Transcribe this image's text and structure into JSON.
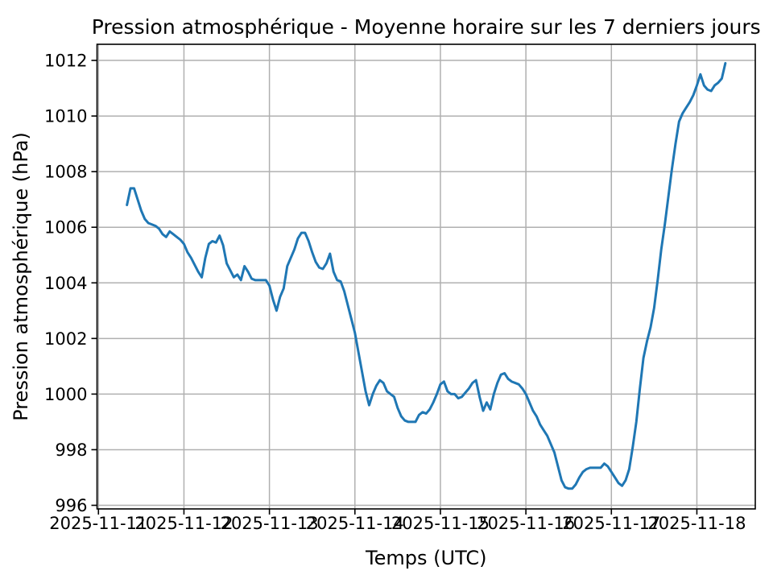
{
  "chart_data": {
    "type": "line",
    "title": "Pression atmosphérique - Moyenne horaire sur les 7 derniers jours",
    "xlabel": "Temps (UTC)",
    "ylabel": "Pression atmosphérique (hPa)",
    "grid": true,
    "legend": false,
    "line_color": "#1f77b4",
    "grid_color": "#b0b0b0",
    "spine_color": "#000000",
    "x_tick_labels": [
      "2025-11-11",
      "2025-11-12",
      "2025-11-13",
      "2025-11-14",
      "2025-11-15",
      "2025-11-16",
      "2025-11-17",
      "2025-11-18"
    ],
    "x_tick_hours": [
      0,
      24,
      48,
      72,
      96,
      120,
      144,
      168
    ],
    "x_unit": "hours since 2025-11-11 00:00 UTC",
    "x_start_hour": 8,
    "x_step_hours": 1,
    "xlim_hours": [
      -0.4,
      184.4
    ],
    "y_ticks": [
      996,
      998,
      1000,
      1002,
      1004,
      1006,
      1008,
      1010,
      1012
    ],
    "ylim": [
      995.87,
      1012.58
    ],
    "series": [
      {
        "name": "Pression atmosphérique",
        "y_values_hpa": [
          1006.8,
          1007.4,
          1007.4,
          1007.0,
          1006.6,
          1006.3,
          1006.15,
          1006.1,
          1006.05,
          1005.95,
          1005.75,
          1005.65,
          1005.85,
          1005.75,
          1005.65,
          1005.55,
          1005.4,
          1005.1,
          1004.9,
          1004.65,
          1004.4,
          1004.2,
          1004.9,
          1005.4,
          1005.5,
          1005.45,
          1005.7,
          1005.35,
          1004.7,
          1004.45,
          1004.2,
          1004.3,
          1004.1,
          1004.6,
          1004.4,
          1004.15,
          1004.1,
          1004.1,
          1004.1,
          1004.1,
          1003.9,
          1003.4,
          1003.0,
          1003.5,
          1003.8,
          1004.6,
          1004.9,
          1005.2,
          1005.6,
          1005.8,
          1005.8,
          1005.5,
          1005.1,
          1004.75,
          1004.55,
          1004.5,
          1004.7,
          1005.05,
          1004.4,
          1004.1,
          1004.05,
          1003.7,
          1003.2,
          1002.7,
          1002.2,
          1001.5,
          1000.8,
          1000.1,
          999.6,
          1000.0,
          1000.3,
          1000.5,
          1000.4,
          1000.1,
          1000.0,
          999.9,
          999.5,
          999.2,
          999.05,
          999.0,
          999.0,
          999.0,
          999.25,
          999.35,
          999.3,
          999.45,
          999.7,
          1000.0,
          1000.35,
          1000.45,
          1000.1,
          1000.0,
          1000.0,
          999.85,
          999.9,
          1000.05,
          1000.2,
          1000.4,
          1000.5,
          999.9,
          999.4,
          999.7,
          999.45,
          1000.0,
          1000.4,
          1000.7,
          1000.75,
          1000.55,
          1000.45,
          1000.4,
          1000.35,
          1000.2,
          1000.0,
          999.7,
          999.4,
          999.2,
          998.9,
          998.7,
          998.5,
          998.2,
          997.9,
          997.4,
          996.9,
          996.65,
          996.6,
          996.6,
          996.75,
          997.0,
          997.2,
          997.3,
          997.35,
          997.35,
          997.35,
          997.35,
          997.5,
          997.4,
          997.2,
          997.0,
          996.8,
          996.7,
          996.9,
          997.3,
          998.1,
          999.0,
          1000.2,
          1001.3,
          1001.9,
          1002.4,
          1003.1,
          1004.1,
          1005.2,
          1006.1,
          1007.1,
          1008.1,
          1009.0,
          1009.8,
          1010.1,
          1010.3,
          1010.5,
          1010.75,
          1011.1,
          1011.5,
          1011.1,
          1010.95,
          1010.9,
          1011.1,
          1011.2,
          1011.35,
          1011.9
        ]
      }
    ]
  }
}
